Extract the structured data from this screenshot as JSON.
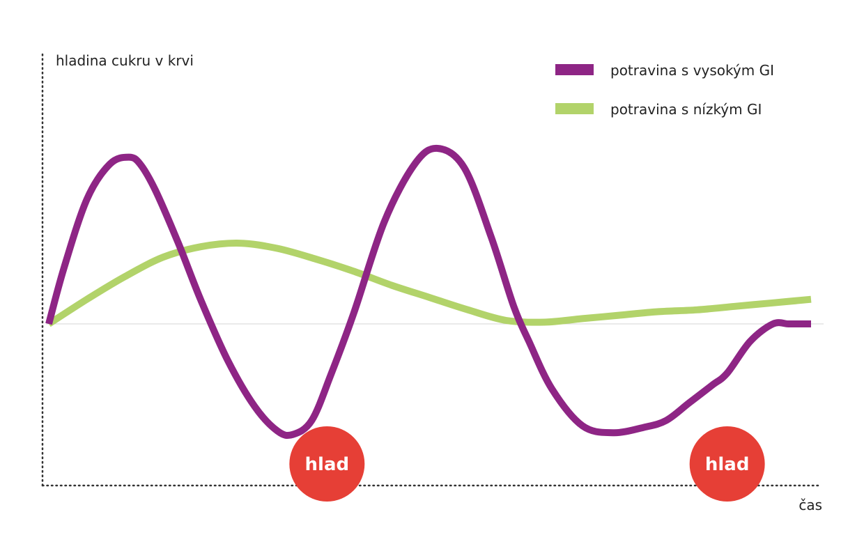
{
  "chart_data": {
    "type": "line",
    "ylabel": "hladina cukru v krvi",
    "xlabel": "čas",
    "xlim": [
      0,
      1
    ],
    "ylim": [
      -1,
      1
    ],
    "legend_placement": "top-right",
    "baseline": 0,
    "series": [
      {
        "name": "potravina s vysokým GI",
        "color": "#8e2585",
        "x": [
          0,
          0.02,
          0.05,
          0.08,
          0.105,
          0.12,
          0.14,
          0.17,
          0.2,
          0.235,
          0.27,
          0.3,
          0.32,
          0.345,
          0.37,
          0.4,
          0.44,
          0.48,
          0.51,
          0.545,
          0.58,
          0.61,
          0.63,
          0.66,
          0.7,
          0.74,
          0.78,
          0.81,
          0.84,
          0.87,
          0.89,
          0.92,
          0.95,
          0.97,
          0.985,
          1.0
        ],
        "values": [
          0,
          0.32,
          0.71,
          0.91,
          0.95,
          0.91,
          0.76,
          0.46,
          0.13,
          -0.21,
          -0.47,
          -0.61,
          -0.63,
          -0.55,
          -0.29,
          0.06,
          0.58,
          0.91,
          1.0,
          0.89,
          0.5,
          0.1,
          -0.1,
          -0.37,
          -0.58,
          -0.62,
          -0.59,
          -0.55,
          -0.45,
          -0.35,
          -0.28,
          -0.1,
          0.0,
          0.0,
          0.0,
          0.0
        ]
      },
      {
        "name": "potravina s nízkým GI",
        "color": "#b2d36a",
        "x": [
          0,
          0.05,
          0.1,
          0.15,
          0.2,
          0.25,
          0.3,
          0.35,
          0.4,
          0.45,
          0.5,
          0.55,
          0.6,
          0.65,
          0.7,
          0.75,
          0.8,
          0.85,
          0.9,
          0.95,
          1.0
        ],
        "values": [
          0,
          0.14,
          0.27,
          0.38,
          0.44,
          0.46,
          0.43,
          0.37,
          0.3,
          0.22,
          0.15,
          0.08,
          0.02,
          0.01,
          0.03,
          0.05,
          0.07,
          0.08,
          0.1,
          0.12,
          0.14
        ]
      }
    ],
    "annotations": [
      {
        "text": "hlad",
        "x": 0.365,
        "y": -0.75,
        "color": "#e63f36"
      },
      {
        "text": "hlad",
        "x": 0.89,
        "y": -0.75,
        "color": "#e63f36"
      }
    ]
  }
}
